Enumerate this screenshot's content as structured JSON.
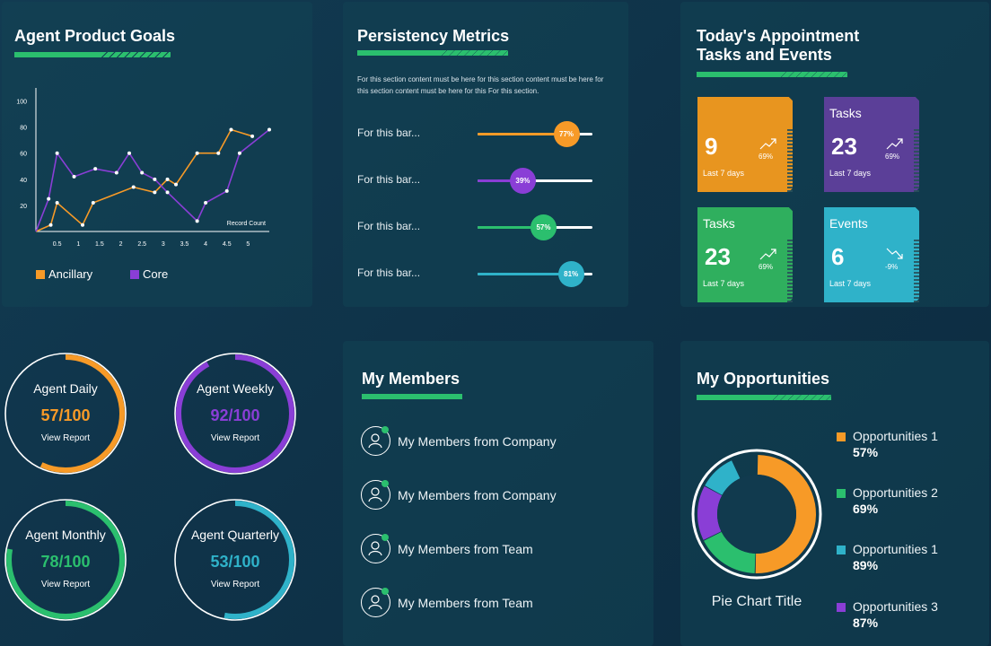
{
  "product_goals": {
    "title": "Agent Product Goals",
    "chart_data": {
      "type": "line",
      "title": "",
      "xlabel": "Record Count",
      "ylabel": "",
      "x_ticks": [
        "0.5",
        "1",
        "1.5",
        "2",
        "2.5",
        "3",
        "3.5",
        "4",
        "4.5",
        "5"
      ],
      "y_ticks": [
        "20",
        "40",
        "60",
        "80",
        "100"
      ],
      "xlim": [
        0,
        5.5
      ],
      "ylim": [
        0,
        110
      ],
      "series": [
        {
          "name": "Ancillary",
          "color": "#f79a27",
          "points": [
            [
              0,
              0
            ],
            [
              0.35,
              5
            ],
            [
              0.5,
              22
            ],
            [
              1.1,
              5
            ],
            [
              1.35,
              22
            ],
            [
              2.3,
              34
            ],
            [
              2.8,
              30
            ],
            [
              3.1,
              40
            ],
            [
              3.3,
              36
            ],
            [
              3.8,
              60
            ],
            [
              4.3,
              60
            ],
            [
              4.6,
              78
            ],
            [
              5.1,
              73
            ]
          ]
        },
        {
          "name": "Core",
          "color": "#8a3ed6",
          "points": [
            [
              0,
              0
            ],
            [
              0.3,
              25
            ],
            [
              0.5,
              60
            ],
            [
              0.9,
              42
            ],
            [
              1.4,
              48
            ],
            [
              1.9,
              45
            ],
            [
              2.2,
              60
            ],
            [
              2.5,
              45
            ],
            [
              2.8,
              40
            ],
            [
              3.1,
              30
            ],
            [
              3.8,
              8
            ],
            [
              4.0,
              22
            ],
            [
              4.5,
              31
            ],
            [
              4.8,
              60
            ],
            [
              5.5,
              78
            ]
          ]
        }
      ],
      "legend_position": "bottom-left"
    }
  },
  "persistency": {
    "title": "Persistency Metrics",
    "description": "For this section content must be here for this section content must be here for this section content must be here for this For this section.",
    "bars": [
      {
        "label": "For this bar...",
        "percent": 77,
        "percent_label": "77%",
        "color": "#f79a27"
      },
      {
        "label": "For this bar...",
        "percent": 39,
        "percent_label": "39%",
        "color": "#8a3ed6"
      },
      {
        "label": "For this bar...",
        "percent": 57,
        "percent_label": "57%",
        "color": "#2bbf6e"
      },
      {
        "label": "For this bar...",
        "percent": 81,
        "percent_label": "81%",
        "color": "#2fb2c9"
      }
    ]
  },
  "appointments": {
    "title_line1": "Today's Appointment",
    "title_line2": "Tasks and Events",
    "cards": [
      {
        "title": "",
        "value": "9",
        "change": "69%",
        "trend": "up",
        "period": "Last 7 days",
        "color": "#e8951f"
      },
      {
        "title": "Tasks",
        "value": "23",
        "change": "69%",
        "trend": "up",
        "period": "Last 7 days",
        "color": "#5b3f98"
      },
      {
        "title": "Tasks",
        "value": "23",
        "change": "69%",
        "trend": "up",
        "period": "Last 7 days",
        "color": "#2faf5e"
      },
      {
        "title": "Events",
        "value": "6",
        "change": "-9%",
        "trend": "down",
        "period": "Last 7 days",
        "color": "#2fb2c9"
      }
    ]
  },
  "gauges": [
    {
      "title": "Agent Daily",
      "value_label": "57/100",
      "progress": 0.57,
      "link": "View Report",
      "color": "#f79a27"
    },
    {
      "title": "Agent Weekly",
      "value_label": "92/100",
      "progress": 0.92,
      "link": "View Report",
      "color": "#8a3ed6"
    },
    {
      "title": "Agent Monthly",
      "value_label": "78/100",
      "progress": 0.78,
      "link": "View Report",
      "color": "#2bbf6e"
    },
    {
      "title": "Agent Quarterly",
      "value_label": "53/100",
      "progress": 0.53,
      "link": "View Report",
      "color": "#2fb2c9"
    }
  ],
  "members": {
    "title": "My Members",
    "items": [
      {
        "label": "My Members from Company"
      },
      {
        "label": "My Members from Company"
      },
      {
        "label": "My Members from Team"
      },
      {
        "label": "My Members from Team"
      }
    ]
  },
  "opportunities": {
    "title": "My Opportunities",
    "pie_title": "Pie Chart Title",
    "chart_data": {
      "type": "pie",
      "title": "Pie Chart Title",
      "slices": [
        {
          "name": "Opportunities 1",
          "value": 57,
          "label": "57%",
          "color": "#f79a27"
        },
        {
          "name": "Opportunities 2",
          "value": 69,
          "label": "69%",
          "color": "#2bbf6e"
        },
        {
          "name": "Opportunities 1",
          "value": 89,
          "label": "89%",
          "color": "#2fb2c9"
        },
        {
          "name": "Opportunities 3",
          "value": 87,
          "label": "87%",
          "color": "#8a3ed6"
        }
      ],
      "legend_position": "right"
    }
  }
}
